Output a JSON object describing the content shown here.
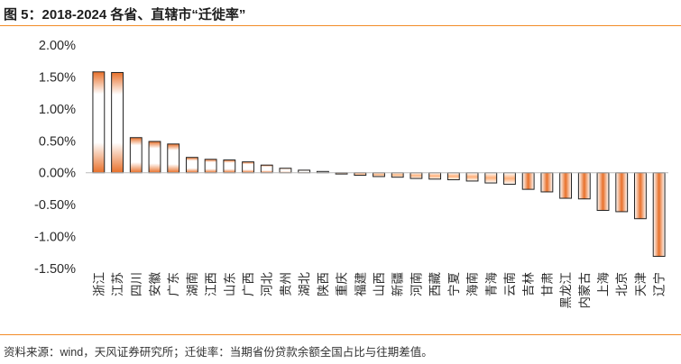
{
  "figure": {
    "title": "图 5：2018-2024 各省、直辖市“迁徙率”",
    "source": "资料来源：wind，天风证券研究所；迁徙率：当期省份贷款余额全国占比与往期差值。"
  },
  "colors": {
    "accent": "#f28c28",
    "bar_edge": "#e8702a",
    "bar_outline": "#222222",
    "axis": "#bbbbbb"
  },
  "chart_data": {
    "type": "bar",
    "title": "",
    "xlabel": "",
    "ylabel": "",
    "ylim": [
      -1.5,
      2.0
    ],
    "yticks": [
      2.0,
      1.5,
      1.0,
      0.5,
      0.0,
      -0.5,
      -1.0,
      -1.5
    ],
    "ytick_labels": [
      "2.00%",
      "1.50%",
      "1.00%",
      "0.50%",
      "0.00%",
      "-0.50%",
      "-1.00%",
      "-1.50%"
    ],
    "grid": false,
    "legend": "none",
    "categories": [
      "浙江",
      "江苏",
      "四川",
      "安徽",
      "广东",
      "湖南",
      "江西",
      "山东",
      "广西",
      "河北",
      "贵州",
      "湖北",
      "陕西",
      "重庆",
      "福建",
      "山西",
      "新疆",
      "河南",
      "西藏",
      "宁夏",
      "海南",
      "青海",
      "云南",
      "吉林",
      "甘肃",
      "黑龙江",
      "内蒙古",
      "上海",
      "北京",
      "天津",
      "辽宁"
    ],
    "values": [
      1.58,
      1.57,
      0.55,
      0.49,
      0.45,
      0.24,
      0.21,
      0.2,
      0.17,
      0.12,
      0.07,
      0.04,
      0.02,
      -0.02,
      -0.04,
      -0.06,
      -0.07,
      -0.09,
      -0.1,
      -0.11,
      -0.13,
      -0.16,
      -0.18,
      -0.26,
      -0.3,
      -0.4,
      -0.41,
      -0.59,
      -0.61,
      -0.72,
      -1.31
    ]
  }
}
